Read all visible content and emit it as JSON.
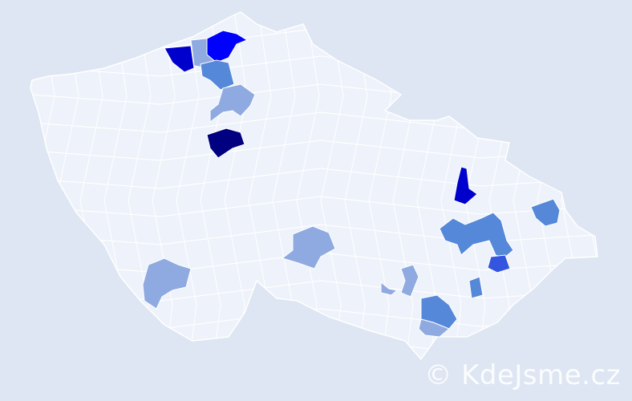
{
  "map": {
    "background_color": "#dde6f2",
    "land_color": "#eef2fa",
    "border_color": "#ffffff",
    "shade_colors": {
      "darkest": "#000080",
      "dark": "#0000cc",
      "bright": "#0000ff",
      "strong": "#3355e0",
      "medium": "#5588d8",
      "light": "#8faae0"
    }
  },
  "watermark": "© KdeJsme.cz"
}
